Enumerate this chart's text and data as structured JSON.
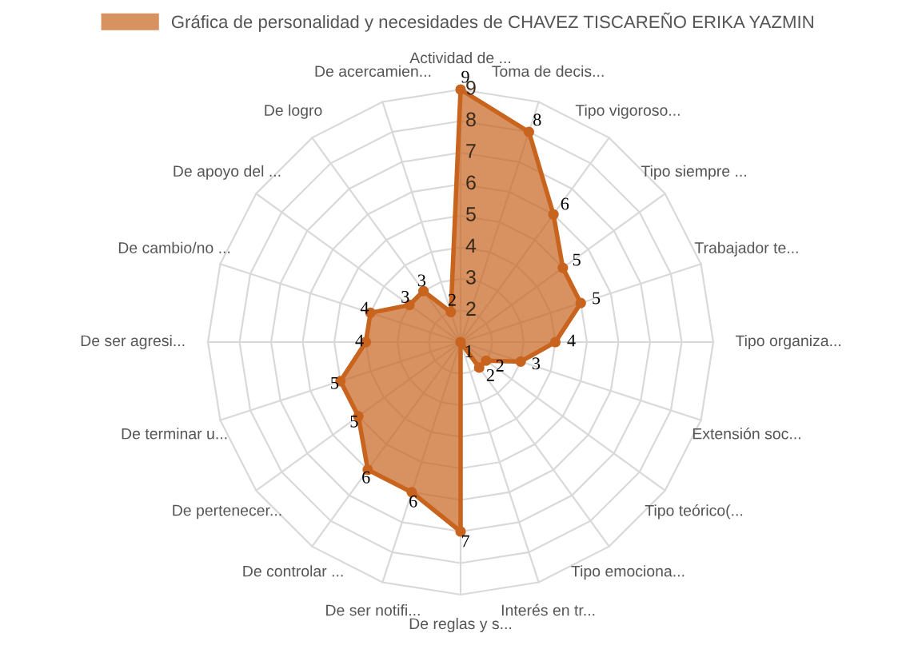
{
  "chart_data": {
    "type": "radar",
    "categories": [
      "Actividad de ...",
      "Toma de decis...",
      "Tipo vigoroso...",
      "Tipo siempre ...",
      "Trabajador te...",
      "Tipo organiza...",
      "Extensión soc...",
      "Tipo teórico(...",
      "Tipo emociona...",
      "Interés en tr...",
      "De reglas y s...",
      "De ser notifi...",
      "De controlar ...",
      "De pertenecer...",
      "De terminar u...",
      "De ser agresi...",
      "De cambio/no ...",
      "De apoyo del ...",
      "De logro",
      "De acercamien..."
    ],
    "series": [
      {
        "name": "Gráfica de personalidad y necesidades de CHAVEZ TISCAREÑO ERIKA YAZMIN",
        "color": "#c8641e",
        "values": [
          9,
          8,
          6,
          5,
          5,
          4,
          3,
          2,
          2,
          1,
          7,
          6,
          6,
          5,
          5,
          4,
          4,
          3,
          3,
          2
        ]
      }
    ],
    "ylim": [
      1,
      9
    ],
    "yticks": [
      2,
      3,
      4,
      5,
      6,
      7,
      8,
      9
    ],
    "data_labels": true,
    "legend": "top",
    "grid": true
  }
}
